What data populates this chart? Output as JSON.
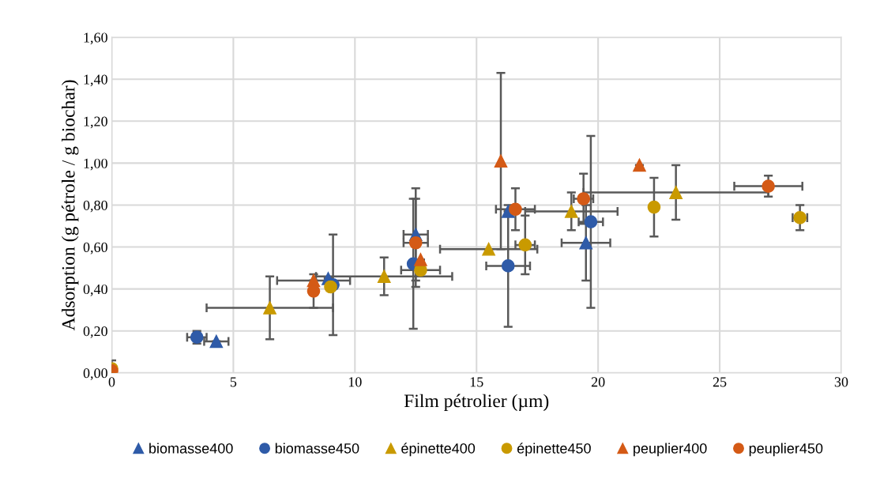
{
  "chart_data": {
    "type": "scatter",
    "xlabel": "Film pétrolier (µm)",
    "ylabel": "Adsorption (g pétrole / g biochar)",
    "xlim": [
      0,
      30
    ],
    "xticks": [
      0,
      5,
      10,
      15,
      20,
      25,
      30
    ],
    "ylim": [
      0,
      1.6
    ],
    "yticks": [
      {
        "value": 0,
        "label": "0,00"
      },
      {
        "value": 0.2,
        "label": "0,20"
      },
      {
        "value": 0.4,
        "label": "0,40"
      },
      {
        "value": 0.6,
        "label": "0,60"
      },
      {
        "value": 0.8,
        "label": "0,80"
      },
      {
        "value": 1.0,
        "label": "1,00"
      },
      {
        "value": 1.2,
        "label": "1,20"
      },
      {
        "value": 1.4,
        "label": "1,40"
      },
      {
        "value": 1.6,
        "label": "1,60"
      }
    ],
    "grid": true,
    "legend": "bottom",
    "series": [
      {
        "name": "biomasse400",
        "color": "#2f5ba8",
        "marker": "triangle",
        "x": [
          4.3,
          8.9,
          12.5,
          16.3,
          19.5
        ],
        "values": [
          0.15,
          0.45,
          0.66,
          0.77,
          0.62
        ],
        "errors": [
          null,
          null,
          0.22,
          null,
          0.18
        ],
        "xerrors": [
          0.5,
          null,
          0.5,
          null,
          1.0
        ]
      },
      {
        "name": "biomasse450",
        "color": "#2f5ba8",
        "marker": "circle",
        "x": [
          3.5,
          9.1,
          12.4,
          16.3,
          19.7
        ],
        "values": [
          0.17,
          0.42,
          0.52,
          0.51,
          0.72
        ],
        "errors": [
          0.03,
          0.24,
          0.31,
          0.29,
          0.41
        ],
        "xerrors": [
          0.4,
          null,
          null,
          0.9,
          0.5
        ]
      },
      {
        "name": "épinette400",
        "color": "#c99a00",
        "marker": "triangle",
        "x": [
          6.5,
          11.2,
          15.5,
          18.9,
          23.2
        ],
        "values": [
          0.31,
          0.46,
          0.59,
          0.77,
          0.86
        ],
        "errors": [
          0.15,
          0.09,
          null,
          0.09,
          0.13
        ],
        "xerrors": [
          2.6,
          2.8,
          2.0,
          1.9,
          3.8
        ]
      },
      {
        "name": "épinette450",
        "color": "#c99a00",
        "marker": "circle",
        "x": [
          0,
          9.0,
          12.7,
          17.0,
          22.3,
          28.3
        ],
        "values": [
          0.02,
          0.41,
          0.49,
          0.61,
          0.79,
          0.74
        ],
        "errors": [
          0.04,
          null,
          null,
          0.14,
          0.14,
          0.06
        ],
        "xerrors": [
          null,
          null,
          0.8,
          0.4,
          null,
          0.3
        ]
      },
      {
        "name": "peuplier400",
        "color": "#d45a16",
        "marker": "triangle",
        "x": [
          0,
          8.3,
          12.7,
          16.0,
          21.7
        ],
        "values": [
          0.0,
          0.44,
          0.54,
          1.01,
          0.99
        ],
        "errors": [
          null,
          null,
          null,
          0.42,
          null
        ],
        "xerrors": [
          null,
          1.5,
          null,
          null,
          null
        ]
      },
      {
        "name": "peuplier450",
        "color": "#d45a16",
        "marker": "circle",
        "x": [
          0,
          8.3,
          12.5,
          16.6,
          19.4,
          27.0
        ],
        "values": [
          0.01,
          0.39,
          0.62,
          0.78,
          0.83,
          0.89
        ],
        "errors": [
          null,
          0.08,
          0.21,
          0.1,
          0.12,
          0.05
        ],
        "xerrors": [
          null,
          null,
          0.5,
          0.8,
          0.4,
          1.4
        ]
      }
    ]
  }
}
